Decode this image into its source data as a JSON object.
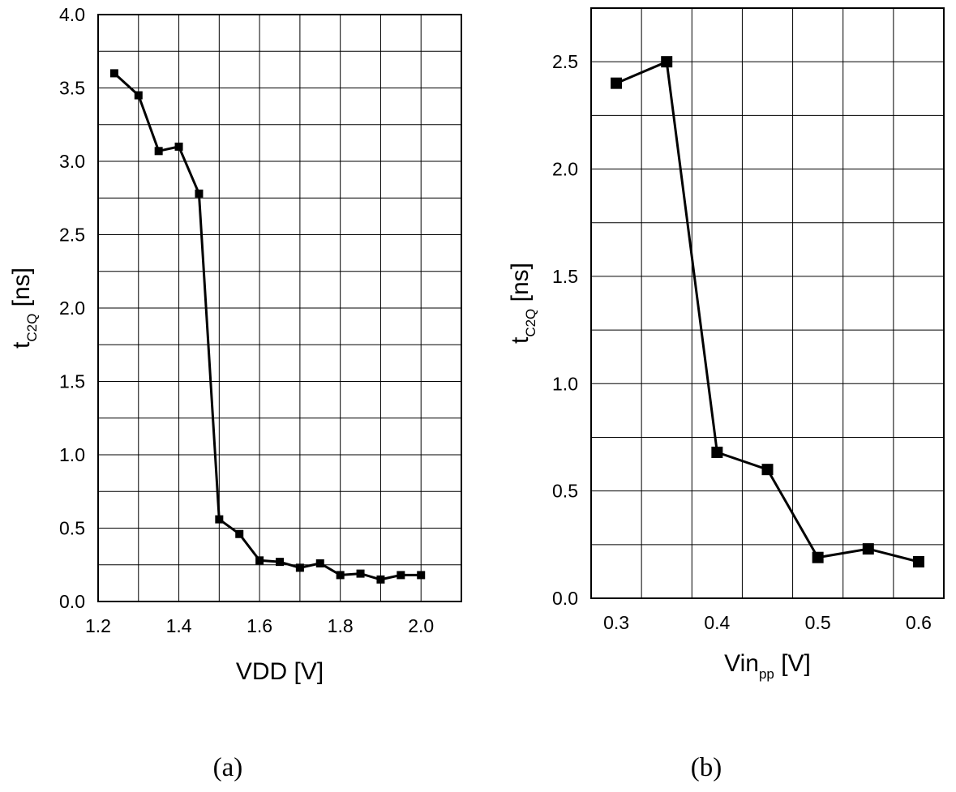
{
  "chart_data": [
    {
      "type": "line",
      "caption": "(a)",
      "xlabel": "VDD [V]",
      "ylabel": {
        "main": "t",
        "sub": "C2Q",
        "tail": " [ns]"
      },
      "xlim": [
        1.2,
        2.1
      ],
      "ylim": [
        0.0,
        4.0
      ],
      "x_ticks": [
        1.2,
        1.4,
        1.6,
        1.8,
        2.0
      ],
      "x_tick_labels": [
        "1.2",
        "1.4",
        "1.6",
        "1.8",
        "2.0"
      ],
      "x_grid": [
        1.2,
        1.3,
        1.4,
        1.5,
        1.6,
        1.7,
        1.8,
        1.9,
        2.0,
        2.1
      ],
      "y_ticks": [
        0.0,
        0.5,
        1.0,
        1.5,
        2.0,
        2.5,
        3.0,
        3.5,
        4.0
      ],
      "y_tick_labels": [
        "0.0",
        "0.5",
        "1.0",
        "1.5",
        "2.0",
        "2.5",
        "3.0",
        "3.5",
        "4.0"
      ],
      "y_grid": [
        0.0,
        0.25,
        0.5,
        0.75,
        1.0,
        1.25,
        1.5,
        1.75,
        2.0,
        2.25,
        2.5,
        2.75,
        3.0,
        3.25,
        3.5,
        3.75,
        4.0
      ],
      "grid": true,
      "legend": "none",
      "series": [
        {
          "x": [
            1.24,
            1.3,
            1.35,
            1.4,
            1.45,
            1.5,
            1.55,
            1.6,
            1.65,
            1.7,
            1.75,
            1.8,
            1.85,
            1.9,
            1.95,
            2.0
          ],
          "y": [
            3.6,
            3.45,
            3.07,
            3.1,
            2.78,
            0.56,
            0.46,
            0.28,
            0.27,
            0.23,
            0.26,
            0.18,
            0.19,
            0.15,
            0.18,
            0.18
          ]
        }
      ]
    },
    {
      "type": "line",
      "caption": "(b)",
      "xlabel": {
        "main": "Vin",
        "sub": "pp",
        "tail": " [V]"
      },
      "ylabel": {
        "main": "t",
        "sub": "C2Q",
        "tail": " [ns]"
      },
      "xlim": [
        0.275,
        0.625
      ],
      "ylim": [
        0.0,
        2.75
      ],
      "x_ticks": [
        0.3,
        0.4,
        0.5,
        0.6
      ],
      "x_tick_labels": [
        "0.3",
        "0.4",
        "0.5",
        "0.6"
      ],
      "x_grid": [
        0.275,
        0.325,
        0.375,
        0.425,
        0.475,
        0.525,
        0.575,
        0.625
      ],
      "y_ticks": [
        0.0,
        0.5,
        1.0,
        1.5,
        2.0,
        2.5
      ],
      "y_tick_labels": [
        "0.0",
        "0.5",
        "1.0",
        "1.5",
        "2.0",
        "2.5"
      ],
      "y_grid": [
        0.0,
        0.25,
        0.5,
        0.75,
        1.0,
        1.25,
        1.5,
        1.75,
        2.0,
        2.25,
        2.5,
        2.75
      ],
      "grid": true,
      "legend": "none",
      "series": [
        {
          "x": [
            0.3,
            0.35,
            0.4,
            0.45,
            0.5,
            0.55,
            0.6
          ],
          "y": [
            2.4,
            2.5,
            0.68,
            0.6,
            0.19,
            0.23,
            0.17
          ]
        }
      ]
    }
  ]
}
